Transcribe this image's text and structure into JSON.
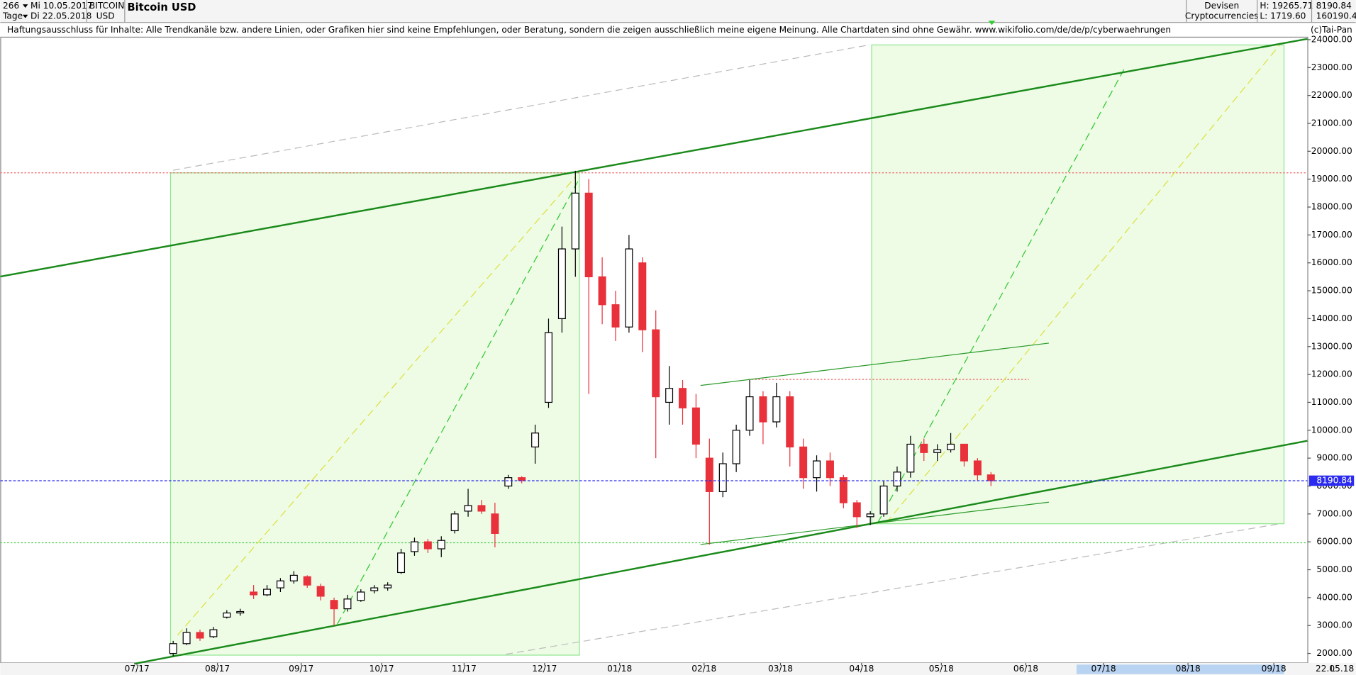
{
  "header": {
    "count": "266",
    "unit": "Tage",
    "from": "Mi 10.05.2017",
    "to": "Di 22.05.2018",
    "symbol": "BITCOIN",
    "currency": "USD",
    "group": "Devisen",
    "subgroup": "Cryptocurrencies",
    "high": "H: 19265.71",
    "low": "L: 1719.60",
    "volume": "160190.4/",
    "scale_mode": "L",
    "date": "22.05.18"
  },
  "disclaimer": "Haftungsausschluss für Inhalte: Alle Trendkanäle bzw. andere Linien, oder Grafiken hier sind keine Empfehlungen, oder Beratung, sondern die zeigen ausschließlich meine eigene Meinung. Alle Chartdaten sind ohne Gewähr.  www.wikifolio.com/de/de/p/cyberwaehrungen",
  "copyright": "(c)Tai-Pan",
  "chart_data": {
    "type": "candlestick",
    "title": "Bitcoin USD",
    "open": [
      2000,
      2350,
      2750,
      2600,
      3300,
      3450,
      4200,
      4100,
      4350,
      4600,
      4750,
      4400,
      3900,
      3600,
      3900,
      4250,
      4350,
      4900,
      5650,
      6000,
      5750,
      6400,
      7100,
      7300,
      7000,
      8000,
      8300,
      9400,
      11000,
      14000,
      16500,
      18500,
      15500,
      14500,
      13700,
      16000,
      13600,
      11000,
      11500,
      10800,
      9000,
      7800,
      8800,
      10000,
      11200,
      10300,
      11200,
      9400,
      8300,
      8900,
      8300,
      7400,
      6900,
      7000,
      8000,
      8500,
      9500,
      9200,
      9300,
      9500,
      8900,
      8400
    ],
    "high": [
      2450,
      2900,
      2850,
      2950,
      3550,
      3600,
      4450,
      4450,
      4700,
      4950,
      4800,
      4500,
      4000,
      4100,
      4300,
      4450,
      4550,
      5750,
      6150,
      6100,
      6200,
      7100,
      7900,
      7500,
      7400,
      8400,
      8350,
      10200,
      14000,
      17300,
      19300,
      19000,
      16200,
      15000,
      17000,
      16200,
      14300,
      12300,
      11800,
      11300,
      9700,
      9200,
      10200,
      11800,
      11400,
      11700,
      11400,
      9700,
      9100,
      9200,
      8400,
      7500,
      7100,
      8200,
      8700,
      9800,
      9700,
      9500,
      9900,
      9500,
      9000,
      8500
    ],
    "low": [
      1900,
      2300,
      2450,
      2550,
      3250,
      3350,
      3950,
      4050,
      4200,
      4500,
      4350,
      3900,
      3000,
      3500,
      3850,
      4150,
      4250,
      4850,
      5500,
      5600,
      5450,
      6300,
      6900,
      7000,
      5800,
      7900,
      8100,
      8800,
      10800,
      13500,
      15500,
      11300,
      13800,
      13200,
      13500,
      12800,
      9000,
      10200,
      10200,
      9000,
      5900,
      7600,
      8500,
      9800,
      9500,
      10100,
      8700,
      7900,
      7800,
      8000,
      7200,
      6500,
      6600,
      6900,
      7800,
      8300,
      8900,
      8900,
      9200,
      8700,
      8200,
      8000
    ],
    "close": [
      2350,
      2750,
      2550,
      2850,
      3450,
      3500,
      4100,
      4300,
      4600,
      4800,
      4450,
      4050,
      3600,
      3950,
      4200,
      4350,
      4450,
      5600,
      6000,
      5750,
      6050,
      7000,
      7300,
      7100,
      6300,
      8300,
      8200,
      9900,
      13500,
      16500,
      18500,
      15500,
      14500,
      13700,
      16500,
      13600,
      11200,
      11500,
      10800,
      9500,
      7800,
      8800,
      10000,
      11200,
      10300,
      11200,
      9400,
      8300,
      8900,
      8300,
      7400,
      6900,
      7000,
      8000,
      8500,
      9500,
      9200,
      9300,
      9500,
      8900,
      8400,
      8190.84
    ],
    "up_color": "#ffffff",
    "down_color": "#e8313a",
    "last_price": 8190.84,
    "last_price_color": "#2a2af0",
    "ylim": [
      1660,
      24090
    ],
    "yticks": [
      {
        "value": 2000,
        "label": "2000.00"
      },
      {
        "value": 3000,
        "label": "3000.00"
      },
      {
        "value": 4000,
        "label": "4000.00"
      },
      {
        "value": 5000,
        "label": "5000.00"
      },
      {
        "value": 6000,
        "label": "6000.00"
      },
      {
        "value": 7000,
        "label": "7000.00"
      },
      {
        "value": 8000,
        "label": "8000.00"
      },
      {
        "value": 9000,
        "label": "9000.00"
      },
      {
        "value": 10000,
        "label": "10000.00"
      },
      {
        "value": 11000,
        "label": "11000.00"
      },
      {
        "value": 12000,
        "label": "12000.00"
      },
      {
        "value": 13000,
        "label": "13000.00"
      },
      {
        "value": 14000,
        "label": "14000.00"
      },
      {
        "value": 15000,
        "label": "15000.00"
      },
      {
        "value": 16000,
        "label": "16000.00"
      },
      {
        "value": 17000,
        "label": "17000.00"
      },
      {
        "value": 18000,
        "label": "18000.00"
      },
      {
        "value": 19000,
        "label": "19000.00"
      },
      {
        "value": 20000,
        "label": "20000.00"
      },
      {
        "value": 21000,
        "label": "21000.00"
      },
      {
        "value": 22000,
        "label": "22000.00"
      },
      {
        "value": 23000,
        "label": "23000.00"
      },
      {
        "value": 24000,
        "label": "24000.00"
      }
    ],
    "xlim": [
      -12.9,
      84.6
    ],
    "xticks": [
      {
        "value": -2.7,
        "label": "07/17"
      },
      {
        "value": 3.3,
        "label": "08/17"
      },
      {
        "value": 9.55,
        "label": "09/17"
      },
      {
        "value": 15.55,
        "label": "10/17"
      },
      {
        "value": 21.7,
        "label": "11/17"
      },
      {
        "value": 27.7,
        "label": "12/17"
      },
      {
        "value": 33.3,
        "label": "01/18"
      },
      {
        "value": 39.6,
        "label": "02/18"
      },
      {
        "value": 45.3,
        "label": "03/18"
      },
      {
        "value": 51.35,
        "label": "04/18"
      },
      {
        "value": 57.3,
        "label": "05/18"
      },
      {
        "value": 63.6,
        "label": "06/18"
      },
      {
        "value": 69.4,
        "label": "07/18"
      },
      {
        "value": 75.7,
        "label": "08/18"
      },
      {
        "value": 82.1,
        "label": "09/18"
      }
    ]
  }
}
